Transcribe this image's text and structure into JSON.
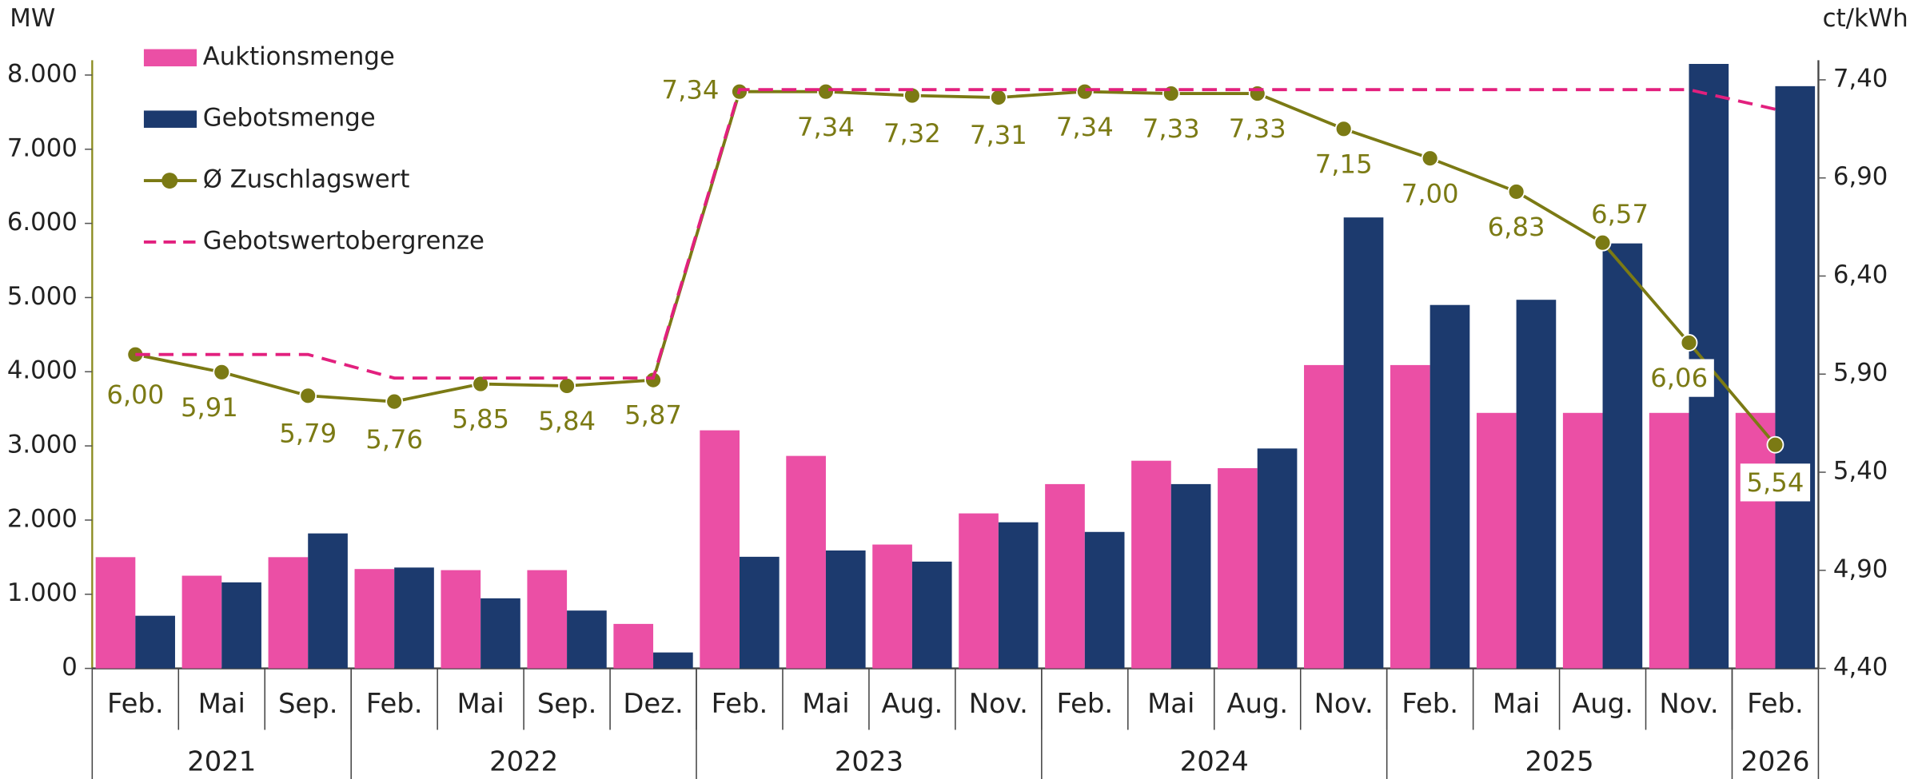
{
  "chart_data": {
    "type": "bar",
    "ylabel": "MW",
    "y2label": "ct/kWh",
    "categories": [
      "Feb.",
      "Mai",
      "Sep.",
      "Feb.",
      "Mai",
      "Sep.",
      "Dez.",
      "Feb.",
      "Mai",
      "Aug.",
      "Nov.",
      "Feb.",
      "Mai",
      "Aug.",
      "Nov.",
      "Feb.",
      "Mai",
      "Aug.",
      "Nov.",
      "Feb."
    ],
    "x_groups": [
      {
        "label": "2021",
        "span": 3
      },
      {
        "label": "2022",
        "span": 4
      },
      {
        "label": "2023",
        "span": 4
      },
      {
        "label": "2024",
        "span": 4
      },
      {
        "label": "2025",
        "span": 4
      },
      {
        "label": "2026",
        "span": 1
      }
    ],
    "series": [
      {
        "name": "Auktionsmenge",
        "type": "bar",
        "color": "#eb4fa5",
        "values": [
          1500,
          1250,
          1500,
          1340,
          1325,
          1325,
          600,
          3210,
          2865,
          1670,
          2090,
          2485,
          2800,
          2700,
          4090,
          4090,
          3445,
          3445,
          3445,
          3445
        ]
      },
      {
        "name": "Gebotsmenge",
        "type": "bar",
        "color": "#1c3a6e",
        "values": [
          710,
          1160,
          1820,
          1360,
          945,
          780,
          215,
          1505,
          1590,
          1440,
          1970,
          1840,
          2485,
          2965,
          6080,
          4900,
          4970,
          5730,
          8150,
          7850
        ]
      },
      {
        "name": "Ø Zuschlagswert",
        "type": "line",
        "axis": "y2",
        "color": "#7b7a14",
        "values": [
          6.0,
          5.91,
          5.79,
          5.76,
          5.85,
          5.84,
          5.87,
          7.34,
          7.34,
          7.32,
          7.31,
          7.34,
          7.33,
          7.33,
          7.15,
          7.0,
          6.83,
          6.57,
          6.06,
          5.54
        ],
        "value_labels": [
          "6,00",
          "5,91",
          "5,79",
          "5,76",
          "5,85",
          "5,84",
          "5,87",
          "7,34",
          "7,34",
          "7,32",
          "7,31",
          "7,34",
          "7,33",
          "7,33",
          "7,15",
          "7,00",
          "6,83",
          "6,57",
          "6,06",
          "5,54"
        ]
      },
      {
        "name": "Gebotswertobergrenze",
        "type": "line",
        "axis": "y2",
        "dashed": true,
        "color": "#e2207e",
        "values": [
          6.0,
          6.0,
          6.0,
          5.88,
          5.88,
          5.88,
          5.88,
          7.35,
          7.35,
          7.35,
          7.35,
          7.35,
          7.35,
          7.35,
          7.35,
          7.35,
          7.35,
          7.35,
          7.35,
          7.25
        ]
      }
    ],
    "ylim": [
      0,
      8200
    ],
    "yticks": [
      0,
      {
        "value": 1000,
        "label": "1.000"
      },
      {
        "value": 2000,
        "label": "2.000"
      },
      {
        "value": 3000,
        "label": "3.000"
      },
      {
        "value": 4000,
        "label": "4.000"
      },
      {
        "value": 5000,
        "label": "5.000"
      },
      {
        "value": 6000,
        "label": "6.000"
      },
      {
        "value": 7000,
        "label": "7.000"
      },
      {
        "value": 8000,
        "label": "8.000"
      }
    ],
    "y2lim": [
      4.4,
      7.5
    ],
    "y2ticks": [
      {
        "value": 4.4,
        "label": "4,40"
      },
      {
        "value": 4.9,
        "label": "4,90"
      },
      {
        "value": 5.4,
        "label": "5,40"
      },
      {
        "value": 5.9,
        "label": "5,90"
      },
      {
        "value": 6.4,
        "label": "6,40"
      },
      {
        "value": 6.9,
        "label": "6,90"
      },
      {
        "value": 7.4,
        "label": "7,40"
      }
    ],
    "legend": "top-left"
  }
}
